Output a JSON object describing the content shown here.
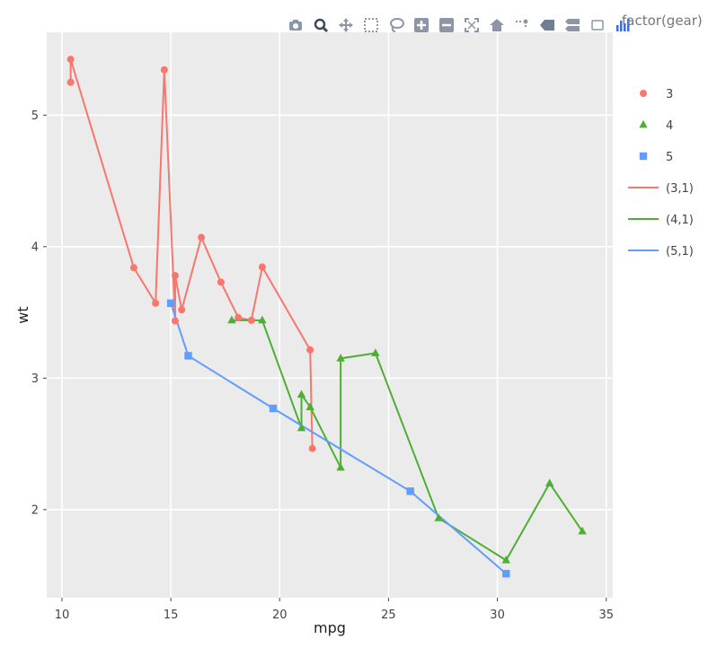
{
  "legend": {
    "title": "factor(gear)",
    "position": "right"
  },
  "modebar": {
    "buttons": [
      "camera-icon",
      "zoom-icon",
      "pan-icon",
      "box-select-icon",
      "lasso-select-icon",
      "zoom-in-icon",
      "zoom-out-icon",
      "autoscale-icon",
      "reset-axes-icon",
      "spike-lines-icon",
      "hover-closest-icon",
      "hover-compare-icon",
      "toggle-hover-icon",
      "plotly-logo-icon"
    ],
    "color": "#8c96a8"
  },
  "chart_data": {
    "type": "line",
    "title": "",
    "xlabel": "mpg",
    "ylabel": "wt",
    "xlim": [
      9.3,
      35.3
    ],
    "ylim": [
      1.33,
      5.63
    ],
    "xticks": [
      10,
      15,
      20,
      25,
      30,
      35
    ],
    "xtick_labels": [
      "10",
      "15",
      "20",
      "25",
      "30",
      "35"
    ],
    "yticks": [
      2,
      3,
      4,
      5
    ],
    "ytick_labels": [
      "2",
      "3",
      "4",
      "5"
    ],
    "grid": true,
    "background": "#ebebeb",
    "series": [
      {
        "name": "3",
        "line_name": "(3,1)",
        "color": "#f8766d",
        "marker": "circle",
        "points": [
          [
            10.4,
            5.25
          ],
          [
            10.4,
            5.424
          ],
          [
            13.3,
            3.84
          ],
          [
            14.3,
            3.57
          ],
          [
            14.7,
            5.345
          ],
          [
            15.2,
            3.435
          ],
          [
            15.2,
            3.78
          ],
          [
            15.5,
            3.52
          ],
          [
            16.4,
            4.07
          ],
          [
            17.3,
            3.73
          ],
          [
            18.1,
            3.46
          ],
          [
            18.7,
            3.44
          ],
          [
            19.2,
            3.845
          ],
          [
            21.4,
            3.215
          ],
          [
            21.5,
            2.465
          ]
        ]
      },
      {
        "name": "4",
        "line_name": "(4,1)",
        "color": "#4daf33",
        "marker": "triangle",
        "points": [
          [
            17.8,
            3.44
          ],
          [
            19.2,
            3.44
          ],
          [
            21.0,
            2.62
          ],
          [
            21.0,
            2.875
          ],
          [
            21.4,
            2.78
          ],
          [
            22.8,
            2.32
          ],
          [
            22.8,
            3.15
          ],
          [
            24.4,
            3.19
          ],
          [
            27.3,
            1.935
          ],
          [
            30.4,
            1.615
          ],
          [
            32.4,
            2.2
          ],
          [
            33.9,
            1.835
          ]
        ]
      },
      {
        "name": "5",
        "line_name": "(5,1)",
        "color": "#619cff",
        "marker": "square",
        "points": [
          [
            15.0,
            3.57
          ],
          [
            15.8,
            3.17
          ],
          [
            19.7,
            2.77
          ],
          [
            26.0,
            2.14
          ],
          [
            30.4,
            1.513
          ]
        ]
      }
    ]
  }
}
